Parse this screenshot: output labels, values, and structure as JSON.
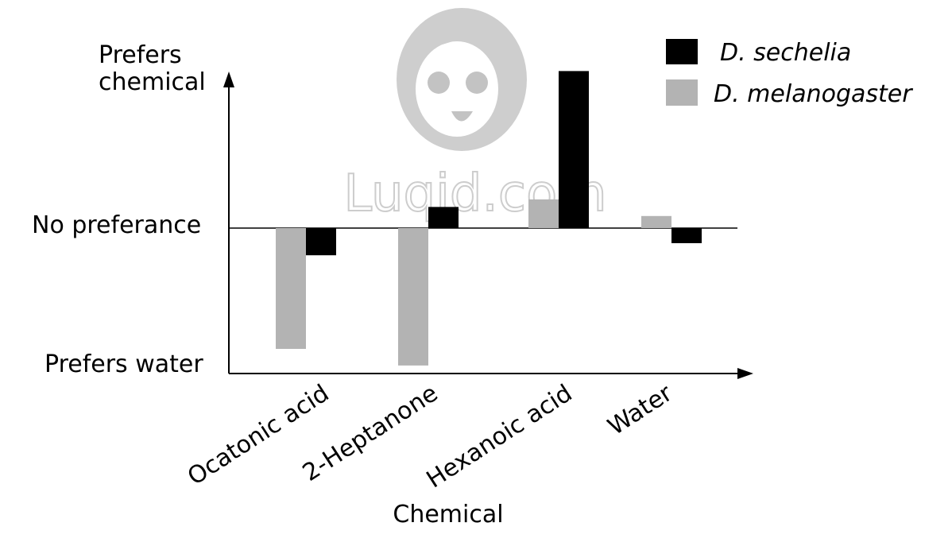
{
  "chart_data": {
    "type": "bar",
    "categories": [
      "Ocatonic acid",
      "2-Heptanone",
      "Hexanoic acid",
      "Water"
    ],
    "series": [
      {
        "name": "D. melanogaster",
        "color": "#b3b3b3",
        "values": [
          -0.8,
          -0.91,
          0.19,
          0.08
        ]
      },
      {
        "name": "D. sechelia",
        "color": "#000000",
        "values": [
          -0.18,
          0.14,
          1.04,
          -0.1
        ]
      }
    ],
    "ylim": [
      -1.0,
      1.0
    ],
    "y_tick_labels": {
      "top": [
        "Prefers",
        "chemical"
      ],
      "middle": "No preferance",
      "bottom": "Prefers water"
    },
    "xlabel": "Chemical",
    "ylabel": "",
    "title": "",
    "legend_position": "top-right",
    "grid": false
  },
  "watermark": {
    "text": "Luqid.com",
    "icon": "cartoon-face-icon"
  }
}
